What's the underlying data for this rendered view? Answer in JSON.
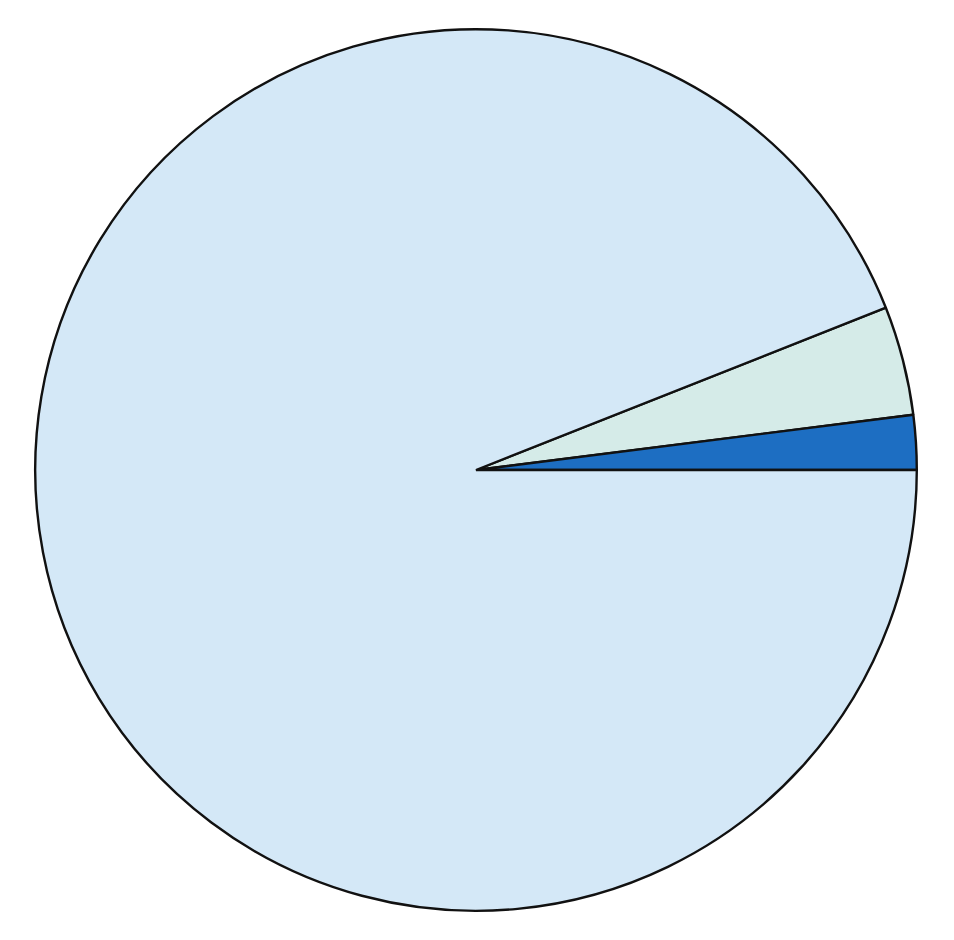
{
  "chart_data": {
    "type": "pie",
    "categories": [
      null,
      null,
      null
    ],
    "values": [
      4,
      2,
      94
    ],
    "colors": [
      "#d5ebe8",
      "#1d6ec2",
      "#d4e8f7"
    ],
    "legend": false
  }
}
